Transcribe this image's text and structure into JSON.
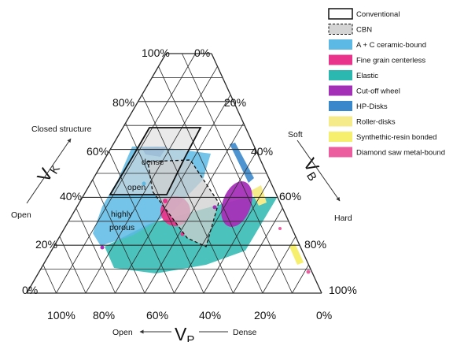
{
  "corner_labels": {
    "top_left": "100%",
    "top_right": "0%",
    "left_bottom": "0%",
    "right_bottom": "100%",
    "bottom_left": "100%",
    "bottom_right": "0%"
  },
  "left_ticks": [
    "80%",
    "60%",
    "40%",
    "20%"
  ],
  "right_ticks": [
    "20%",
    "40%",
    "60%",
    "80%"
  ],
  "bottom_ticks": [
    "80%",
    "60%",
    "40%",
    "20%"
  ],
  "axes": {
    "vk": {
      "main": "V",
      "sub": "K"
    },
    "vb": {
      "main": "V",
      "sub": "B"
    },
    "vp": {
      "main": "V",
      "sub": "P"
    }
  },
  "side_labels": {
    "closed_structure": "Closed structure",
    "open_left": "Open",
    "soft": "Soft",
    "hard": "Hard",
    "open_bottom": "Open",
    "dense_bottom": "Dense"
  },
  "region_labels": {
    "dense": "dense",
    "open": "open",
    "highly": "highly",
    "porous": "porous"
  },
  "legend": [
    {
      "label": "Conventional",
      "color": "#ffffff",
      "style": "outline"
    },
    {
      "label": "CBN",
      "color": "#d4d4d4",
      "style": "dashed"
    },
    {
      "label": "A + C ceramic-bound",
      "color": "#5cb8e4",
      "style": "fill"
    },
    {
      "label": "Fine grain centerless",
      "color": "#e8348a",
      "style": "fill"
    },
    {
      "label": "Elastic",
      "color": "#2bb8b0",
      "style": "fill"
    },
    {
      "label": "Cut-off wheel",
      "color": "#a530b8",
      "style": "fill"
    },
    {
      "label": "HP-Disks",
      "color": "#3a88cc",
      "style": "fill"
    },
    {
      "label": "Roller-disks",
      "color": "#f6eb8a",
      "style": "fill"
    },
    {
      "label": "Synthethic-resin bonded",
      "color": "#f6ef6e",
      "style": "fill"
    },
    {
      "label": "Diamond saw metal-bound",
      "color": "#ec5da0",
      "style": "fill"
    }
  ]
}
